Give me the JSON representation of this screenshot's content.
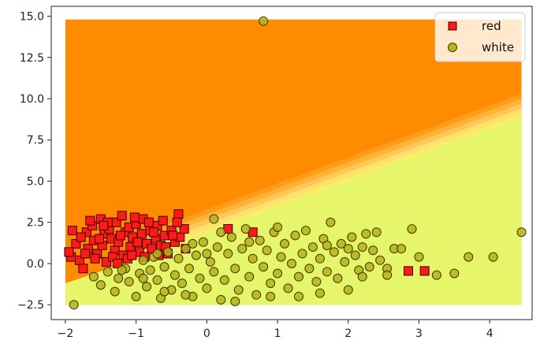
{
  "chart_data": {
    "type": "scatter",
    "title": "",
    "xlabel": "",
    "ylabel": "",
    "xlim": [
      -2.2,
      4.6
    ],
    "ylim": [
      -3.4,
      15.6
    ],
    "xticks": [
      -2,
      -1,
      0,
      1,
      2,
      3,
      4
    ],
    "yticks": [
      -2.5,
      0.0,
      2.5,
      5.0,
      7.5,
      10.0,
      12.5,
      15.0
    ],
    "xtick_labels": [
      "−2",
      "−1",
      "0",
      "1",
      "2",
      "3",
      "4"
    ],
    "ytick_labels": [
      "−2.5",
      "0.0",
      "2.5",
      "5.0",
      "7.5",
      "10.0",
      "12.5",
      "15.0"
    ],
    "grid": false,
    "legend_position": "top-right",
    "decision_region": {
      "x_range": [
        -2.0,
        4.45
      ],
      "y_range": [
        -2.5,
        14.8
      ],
      "boundary_line": {
        "x0": -0.5,
        "y0": 1.6,
        "x1": 4.45,
        "y1": 9.4
      },
      "upper_color": "#ff8c00",
      "lower_color": "#e6f56a",
      "band_colors": [
        "#ff9d1a",
        "#ffb238",
        "#ffc957",
        "#ffe06c",
        "#f4f06a"
      ]
    },
    "series": [
      {
        "name": "red",
        "marker": "square",
        "face_color": "#ff1a1a",
        "edge_color": "#3a0000",
        "points": [
          [
            -1.92,
            0.4
          ],
          [
            -1.85,
            1.2
          ],
          [
            -1.8,
            0.2
          ],
          [
            -1.75,
            -0.3
          ],
          [
            -1.7,
            1.9
          ],
          [
            -1.68,
            0.9
          ],
          [
            -1.62,
            2.3
          ],
          [
            -1.6,
            1.4
          ],
          [
            -1.55,
            0.6
          ],
          [
            -1.5,
            2.7
          ],
          [
            -1.48,
            1.1
          ],
          [
            -1.45,
            1.8
          ],
          [
            -1.42,
            0.1
          ],
          [
            -1.38,
            2.1
          ],
          [
            -1.35,
            1.5
          ],
          [
            -1.3,
            0.8
          ],
          [
            -1.28,
            2.5
          ],
          [
            -1.25,
            1.3
          ],
          [
            -1.2,
            2.9
          ],
          [
            -1.18,
            0.5
          ],
          [
            -1.15,
            1.9
          ],
          [
            -1.1,
            2.2
          ],
          [
            -1.08,
            1.0
          ],
          [
            -1.05,
            1.6
          ],
          [
            -1.0,
            2.4
          ],
          [
            -0.95,
            0.7
          ],
          [
            -0.92,
            1.8
          ],
          [
            -0.9,
            2.7
          ],
          [
            -0.85,
            1.2
          ],
          [
            -0.8,
            2.0
          ],
          [
            -0.78,
            0.9
          ],
          [
            -0.72,
            1.5
          ],
          [
            -0.7,
            2.3
          ],
          [
            -0.65,
            1.1
          ],
          [
            -0.6,
            1.7
          ],
          [
            -0.55,
            0.6
          ],
          [
            -0.5,
            2.0
          ],
          [
            -0.45,
            1.3
          ],
          [
            -0.4,
            3.0
          ],
          [
            -0.38,
            1.6
          ],
          [
            -0.32,
            2.1
          ],
          [
            -0.3,
            0.9
          ],
          [
            -1.9,
            2.0
          ],
          [
            -1.78,
            1.6
          ],
          [
            -1.65,
            2.6
          ],
          [
            -1.58,
            0.3
          ],
          [
            -1.52,
            1.5
          ],
          [
            -1.4,
            2.5
          ],
          [
            -1.33,
            0.4
          ],
          [
            -1.22,
            1.7
          ],
          [
            -1.12,
            0.3
          ],
          [
            -1.02,
            2.8
          ],
          [
            -0.98,
            1.3
          ],
          [
            -0.88,
            0.4
          ],
          [
            -0.82,
            2.5
          ],
          [
            -0.75,
            1.9
          ],
          [
            -0.62,
            2.6
          ],
          [
            -0.58,
            1.0
          ],
          [
            -0.48,
            1.7
          ],
          [
            -0.42,
            2.5
          ],
          [
            -1.95,
            0.7
          ],
          [
            -1.72,
            0.6
          ],
          [
            -1.46,
            2.3
          ],
          [
            -1.26,
            0.0
          ],
          [
            -1.06,
            0.5
          ],
          [
            -0.68,
            0.5
          ],
          [
            0.3,
            2.1
          ],
          [
            0.65,
            1.9
          ],
          [
            2.85,
            -0.45
          ],
          [
            3.08,
            -0.45
          ]
        ]
      },
      {
        "name": "white",
        "marker": "circle",
        "face_color": "#b5b21a",
        "edge_color": "#3d3a00",
        "points": [
          [
            -1.88,
            -2.5
          ],
          [
            -1.6,
            -0.8
          ],
          [
            -1.5,
            -1.3
          ],
          [
            -1.4,
            -0.5
          ],
          [
            -1.3,
            -1.7
          ],
          [
            -1.25,
            -0.9
          ],
          [
            -1.15,
            -0.3
          ],
          [
            -1.1,
            -1.1
          ],
          [
            -1.0,
            -2.0
          ],
          [
            -0.95,
            -0.6
          ],
          [
            -0.9,
            0.2
          ],
          [
            -0.85,
            -1.4
          ],
          [
            -0.8,
            -0.4
          ],
          [
            -0.75,
            0.4
          ],
          [
            -0.7,
            -1.0
          ],
          [
            -0.65,
            -2.1
          ],
          [
            -0.6,
            -0.2
          ],
          [
            -0.55,
            0.7
          ],
          [
            -0.5,
            -1.6
          ],
          [
            -0.45,
            -0.7
          ],
          [
            -0.4,
            0.3
          ],
          [
            -0.35,
            -1.2
          ],
          [
            -0.3,
            0.9
          ],
          [
            -0.25,
            -0.3
          ],
          [
            -0.2,
            -2.0
          ],
          [
            -0.15,
            0.5
          ],
          [
            -0.1,
            -0.9
          ],
          [
            -0.05,
            1.3
          ],
          [
            0.0,
            -1.5
          ],
          [
            0.05,
            0.1
          ],
          [
            0.1,
            -0.5
          ],
          [
            0.1,
            2.7
          ],
          [
            0.15,
            1.0
          ],
          [
            0.2,
            -2.2
          ],
          [
            0.25,
            -1.0
          ],
          [
            0.3,
            0.6
          ],
          [
            0.35,
            1.6
          ],
          [
            0.4,
            -0.3
          ],
          [
            0.45,
            -1.6
          ],
          [
            0.5,
            0.9
          ],
          [
            0.55,
            2.1
          ],
          [
            0.6,
            -0.8
          ],
          [
            0.65,
            0.3
          ],
          [
            0.7,
            -1.9
          ],
          [
            0.75,
            1.4
          ],
          [
            0.8,
            14.7
          ],
          [
            0.8,
            -0.2
          ],
          [
            0.85,
            0.8
          ],
          [
            0.9,
            -1.2
          ],
          [
            0.95,
            1.9
          ],
          [
            1.0,
            -0.6
          ],
          [
            1.05,
            0.4
          ],
          [
            1.1,
            1.2
          ],
          [
            1.15,
            -1.5
          ],
          [
            1.2,
            0.0
          ],
          [
            1.25,
            1.7
          ],
          [
            1.3,
            -0.8
          ],
          [
            1.35,
            0.6
          ],
          [
            1.4,
            2.0
          ],
          [
            1.45,
            -0.3
          ],
          [
            1.5,
            1.0
          ],
          [
            1.55,
            -1.1
          ],
          [
            1.6,
            0.3
          ],
          [
            1.65,
            1.5
          ],
          [
            1.7,
            -0.5
          ],
          [
            1.75,
            2.5
          ],
          [
            1.8,
            0.7
          ],
          [
            1.85,
            -0.9
          ],
          [
            1.9,
            1.2
          ],
          [
            1.95,
            0.1
          ],
          [
            2.0,
            -1.6
          ],
          [
            2.05,
            1.6
          ],
          [
            2.1,
            0.5
          ],
          [
            2.15,
            -0.4
          ],
          [
            2.2,
            1.0
          ],
          [
            2.25,
            1.8
          ],
          [
            2.3,
            -0.2
          ],
          [
            2.35,
            0.8
          ],
          [
            2.4,
            1.9
          ],
          [
            2.45,
            0.2
          ],
          [
            2.55,
            -0.3
          ],
          [
            2.65,
            0.9
          ],
          [
            2.75,
            0.9
          ],
          [
            2.9,
            2.1
          ],
          [
            2.55,
            -0.7
          ],
          [
            3.0,
            0.4
          ],
          [
            3.25,
            -0.7
          ],
          [
            3.5,
            -0.6
          ],
          [
            3.7,
            0.4
          ],
          [
            4.05,
            0.4
          ],
          [
            4.45,
            1.9
          ],
          [
            -0.2,
            1.2
          ],
          [
            0.0,
            0.6
          ],
          [
            0.2,
            1.9
          ],
          [
            0.4,
            -2.3
          ],
          [
            0.6,
            1.3
          ],
          [
            -0.6,
            -1.7
          ],
          [
            -0.3,
            -1.9
          ],
          [
            1.3,
            -2.0
          ],
          [
            1.6,
            -1.8
          ],
          [
            2.0,
            0.9
          ],
          [
            1.0,
            2.2
          ],
          [
            -1.2,
            -0.4
          ],
          [
            -0.9,
            -0.9
          ],
          [
            -0.7,
            0.6
          ],
          [
            0.9,
            -2.0
          ],
          [
            1.7,
            1.1
          ],
          [
            2.2,
            -0.8
          ]
        ]
      }
    ]
  }
}
